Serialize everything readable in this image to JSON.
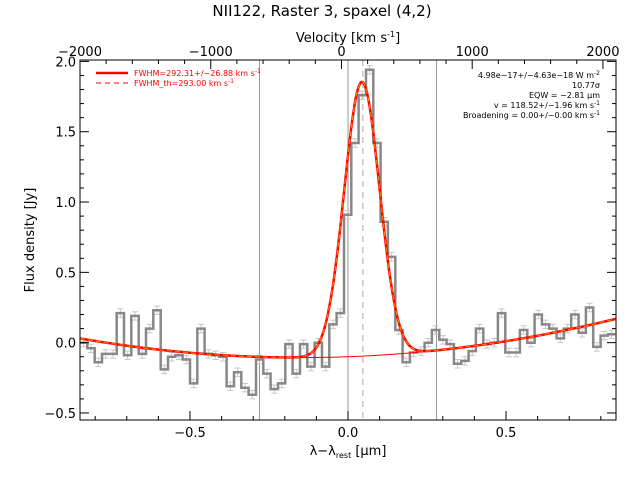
{
  "chart_data": {
    "type": "line",
    "title": "NII122, Raster 3, spaxel (4,2)",
    "xlabel": "λ−λ",
    "xlabel_sub": "rest",
    "xlabel_unit": " [μm]",
    "ylabel": "Flux density [Jy]",
    "top_axis_label": "Velocity [km s",
    "top_axis_label_sup": "-1",
    "top_axis_label_end": "]",
    "xlim": [
      -0.848,
      0.848
    ],
    "ylim": [
      -0.55,
      2.01
    ],
    "top_xlim": [
      -2000,
      2100
    ],
    "x_ticks": [
      -0.5,
      0.0,
      0.5
    ],
    "x_tick_labels": [
      "−0.5",
      "0.0",
      "0.5"
    ],
    "y_ticks": [
      -0.5,
      0.0,
      0.5,
      1.0,
      1.5,
      2.0
    ],
    "y_tick_labels": [
      "−0.5",
      "0.0",
      "0.5",
      "1.0",
      "1.5",
      "2.0"
    ],
    "top_ticks": [
      -2000,
      -1000,
      0,
      1000,
      2000
    ],
    "top_tick_labels": [
      "−2000",
      "−1000",
      "0",
      "1000",
      "2000"
    ],
    "spectrum": {
      "bin_start": -0.848,
      "bin_width": 0.0232,
      "values": [
        0.0,
        -0.04,
        -0.14,
        -0.08,
        -0.08,
        0.21,
        -0.09,
        0.19,
        -0.08,
        0.1,
        0.23,
        -0.19,
        -0.1,
        -0.09,
        -0.12,
        -0.29,
        0.1,
        -0.08,
        -0.09,
        -0.1,
        -0.31,
        -0.21,
        -0.32,
        -0.37,
        -0.12,
        -0.22,
        -0.33,
        -0.29,
        -0.01,
        -0.22,
        -0.01,
        -0.17,
        0.0,
        -0.17,
        0.13,
        0.21,
        0.91,
        1.42,
        1.76,
        1.94,
        1.42,
        0.86,
        0.61,
        0.09,
        -0.14,
        -0.07,
        -0.06,
        0.0,
        0.09,
        0.02,
        -0.01,
        -0.15,
        -0.13,
        -0.06,
        0.1,
        -0.01,
        0.0,
        0.21,
        -0.07,
        -0.07,
        0.09,
        0.0,
        0.2,
        0.13,
        0.1,
        0.03,
        0.1,
        0.2,
        0.07,
        0.25,
        -0.03,
        0.05,
        0.06
      ],
      "error": 0.03,
      "color": "#888888"
    },
    "fit": {
      "baseline_coeffs": [
        -0.1,
        0.0825,
        0.278
      ],
      "gaussian_amplitude": 1.95,
      "gaussian_center": 0.044,
      "gaussian_sigma": 0.056,
      "color": "#ff0000"
    },
    "vertical_lines": [
      -0.28,
      0.0,
      0.28
    ],
    "dashed_vertical_line": 0.047,
    "legend": [
      {
        "label": "FWHM=292.31+/−26.88 km s",
        "sup": "-1",
        "style": "solid"
      },
      {
        "label": "FWHM_th=293.00 km s",
        "sup": "-1",
        "style": "dashed"
      }
    ],
    "legend_placement": "top-left",
    "annotations": [
      {
        "text": "4.98e−17+/−4.63e−18 W m",
        "sup": "-2"
      },
      {
        "text": "10.77σ",
        "sup": ""
      },
      {
        "text": "EQW = −2.81 μm",
        "sup": ""
      },
      {
        "text": "v = 118.52+/−1.96 km s",
        "sup": "-1"
      },
      {
        "text": "Broadening = 0.00+/−0.00 km s",
        "sup": "-1"
      }
    ],
    "annotation_placement": "top-right",
    "grid": false
  }
}
